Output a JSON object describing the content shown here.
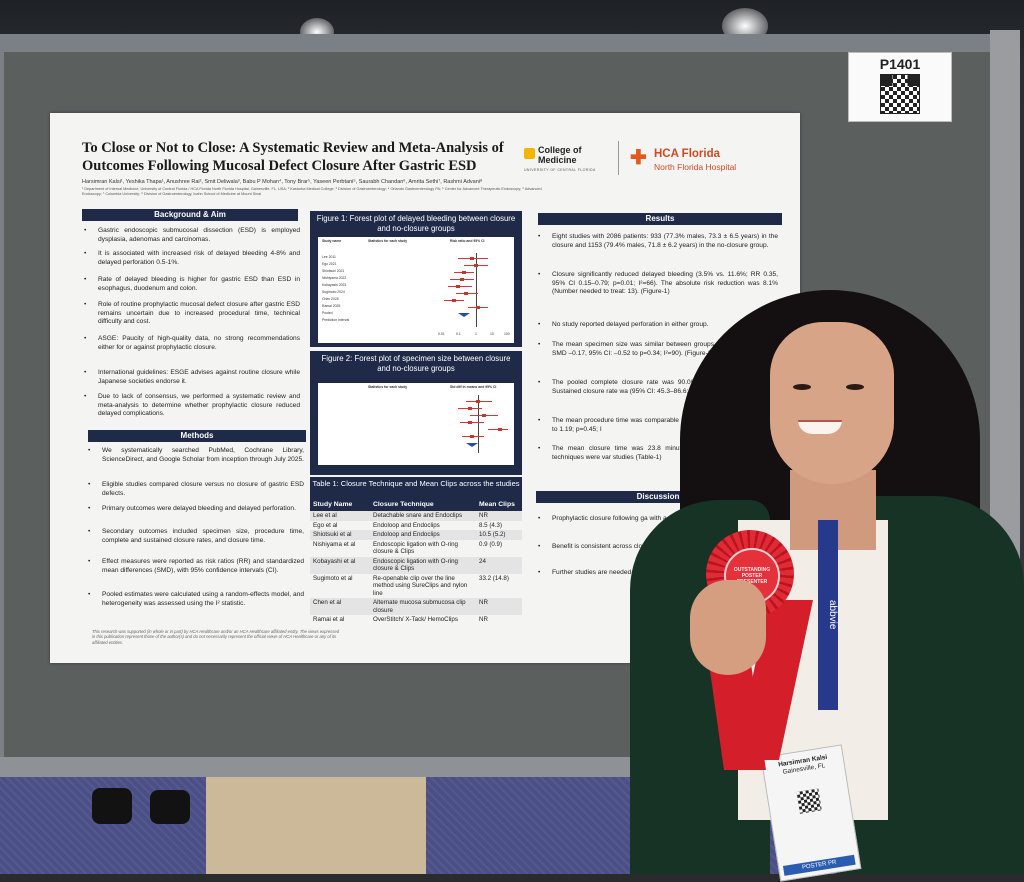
{
  "booth": {
    "id": "P1401"
  },
  "poster": {
    "title": "To Close or Not to Close: A Systematic Review and Meta-Analysis of Outcomes Following Mucosal Defect Closure After Gastric ESD",
    "authors": "Harsimran Kalsi¹, Yeshika Thapa¹, Anushree Rai², Smit Deliwala³, Babu P Mohan⁴, Tony Brar⁵, Yaseen Perbtani⁵, Saurabh Chandan⁶, Amrita Sethi⁷, Rashmi Advani⁸",
    "affiliations": "¹ Department of Internal Medicine, University of Central Florida / HCA Florida North Florida Hospital, Gainesville, FL, USA; ² Kasturba Medical College; ³ Division of Gastroenterology; ⁴ Orlando Gastroenterology PA; ⁵ Center for Advanced Therapeutic Endoscopy; ⁶ Advanced Endoscopy; ⁷ Columbia University; ⁸ Division of Gastroenterology, Icahn School of Medicine at Mount Sinai",
    "logos": {
      "ucf_line1": "College of",
      "ucf_line2": "Medicine",
      "ucf_sub": "UNIVERSITY OF CENTRAL FLORIDA",
      "ucf_mark": "UCF",
      "hca_line1": "HCA Florida",
      "hca_line2": "North Florida Hospital",
      "hca_icon": "plus-cross-icon"
    },
    "background": {
      "heading": "Background & Aim",
      "bullets": [
        "Gastric endoscopic submucosal dissection (ESD) is employed dysplasia, adenomas and carcinomas.",
        "It is associated with increased risk of delayed bleeding 4-8% and delayed perforation 0.5-1%.",
        "Rate of delayed bleeding is higher for gastric ESD than ESD in esophagus, duodenum and colon.",
        "Role of routine prophylactic mucosal defect closure after gastric ESD remains uncertain due to increased procedural time, technical difficulty and cost.",
        "ASGE: Paucity of high-quality data, no strong recommendations either for or against prophylactic closure.",
        "International guidelines: ESGE advises against routine closure while Japanese societies endorse it.",
        "Due to lack of consensus, we performed a systematic review and meta-analysis to determine whether prophylactic closure reduced delayed complications."
      ]
    },
    "methods": {
      "heading": "Methods",
      "bullets": [
        "We systematically searched PubMed, Cochrane Library, ScienceDirect, and Google Scholar from inception through July 2025.",
        "Eligible studies compared closure versus no closure of gastric ESD defects.",
        "Primary outcomes were delayed bleeding and delayed perforation.",
        "Secondary outcomes included specimen size, procedure time, complete and sustained closure rates, and closure time.",
        "Effect measures were reported as risk ratios (RR) and standardized mean differences (SMD), with 95% confidence intervals (CI).",
        "Pooled estimates were calculated using a random-effects model, and heterogeneity was assessed using the I² statistic."
      ]
    },
    "footer_note": "This research was supported (in whole or in part) by HCA Healthcare and/or an HCA Healthcare affiliated entity. The views expressed in this publication represent those of the author(s) and do not necessarily represent the official views of HCA Healthcare or any of its affiliated entities.",
    "figure1": {
      "caption": "Figure 1: Forest plot of delayed bleeding between closure and no-closure groups",
      "header": "Study name",
      "header_stats": "Statistics for each study",
      "header_rr": "Risk ratio and 95% CI",
      "studies": [
        "Lee 2011",
        "Ego 2021",
        "Shiotsuki 2021",
        "Nishiyama 2022",
        "Kobayashi 2023",
        "Sugimoto 2024",
        "Chen 2025",
        "Ramai 2025",
        "Pooled",
        "Prediction Interval"
      ],
      "axis_ticks": [
        "0.01",
        "0.1",
        "1",
        "10",
        "100"
      ]
    },
    "figure2": {
      "caption": "Figure 2: Forest plot of specimen size between closure and no-closure groups",
      "header_stats": "Statistics for each study",
      "header_smd": "Std diff in means and 95% CI"
    },
    "table1": {
      "caption": "Table 1: Closure Technique and Mean Clips across the studies",
      "columns": [
        "Study Name",
        "Closure Technique",
        "Mean Clips"
      ],
      "rows": [
        [
          "Lee et al",
          "Detachable snare and Endoclips",
          "NR"
        ],
        [
          "Ego et al",
          "Endoloop and Endoclips",
          "8.5 (4.3)"
        ],
        [
          "Shiotsuki et al",
          "Endoloop and Endoclips",
          "10.5 (5.2)"
        ],
        [
          "Nishiyama et al",
          "Endoscopic ligation with O-ring closure & Clips",
          "0.9 (0.9)"
        ],
        [
          "Kobayashi et al",
          "Endoscopic ligation with O-ring closure & Clips",
          "24"
        ],
        [
          "Sugimoto et al",
          "Re-openable clip over the line method using SureClips and nylon line",
          "33.2 (14.8)"
        ],
        [
          "Chen et al",
          "Alternate mucosa submucosa clip closure",
          "NR"
        ],
        [
          "Ramai et al",
          "OverStitch/ X-Tack/ HemoClips",
          "NR"
        ]
      ]
    },
    "results": {
      "heading": "Results",
      "bullets": [
        "Eight studies with 2086 patients: 933 (77.3% males, 73.3 ± 6.5 years) in the closure and 1153 (79.4% males, 71.8 ± 6.2 years) in the no-closure group.",
        "Closure significantly reduced delayed bleeding (3.5% vs. 11.6%; RR 0.35, 95% CI 0.15–0.79; p=0.01; I²=66). The absolute risk reduction was 8.1% (Number needed to treat: 13). (Figure-1)",
        "No study reported delayed perforation in either group.",
        "The mean specimen size was similar between groups (3 mm vs. 39.4 mm; SMD –0.17, 95% CI: –0.52 to p=0.34; I²=90). (Figure-2)",
        "The pooled complete closure rate was 90.0% (9 75.7–96.3; I² = 82.4). Sustained closure rate wa (95% CI: 45.3–86.6; I² = 86.3).",
        "The mean procedure time was comparable (6 min; SMD 0.34, 95% CI –0.52 to 1.19; p=0.45; I",
        "The mean closure time was 23.8 minutes (9 29.8; I² = 97). Closure techniques were var studies (Table-1)"
      ]
    },
    "discussion": {
      "heading": "Discussion",
      "bullets": [
        "Prophylactic closure following ga with a significant reduction in de",
        "Benefit is consistent across clo patient population.",
        "Further studies are needed t and refine technique selection"
      ]
    }
  },
  "ribbon": {
    "text": "OUTSTANDING POSTER PRESENTER"
  },
  "lanyard": {
    "text": "abbvie"
  },
  "name_badge": {
    "name": "Harsimran Kalsi",
    "city": "Gainesville, FL",
    "footer": "POSTER PR"
  },
  "colors": {
    "poster_navy": "#1f2a48",
    "ribbon_red": "#d41e2a",
    "jacket_green": "#173326"
  }
}
